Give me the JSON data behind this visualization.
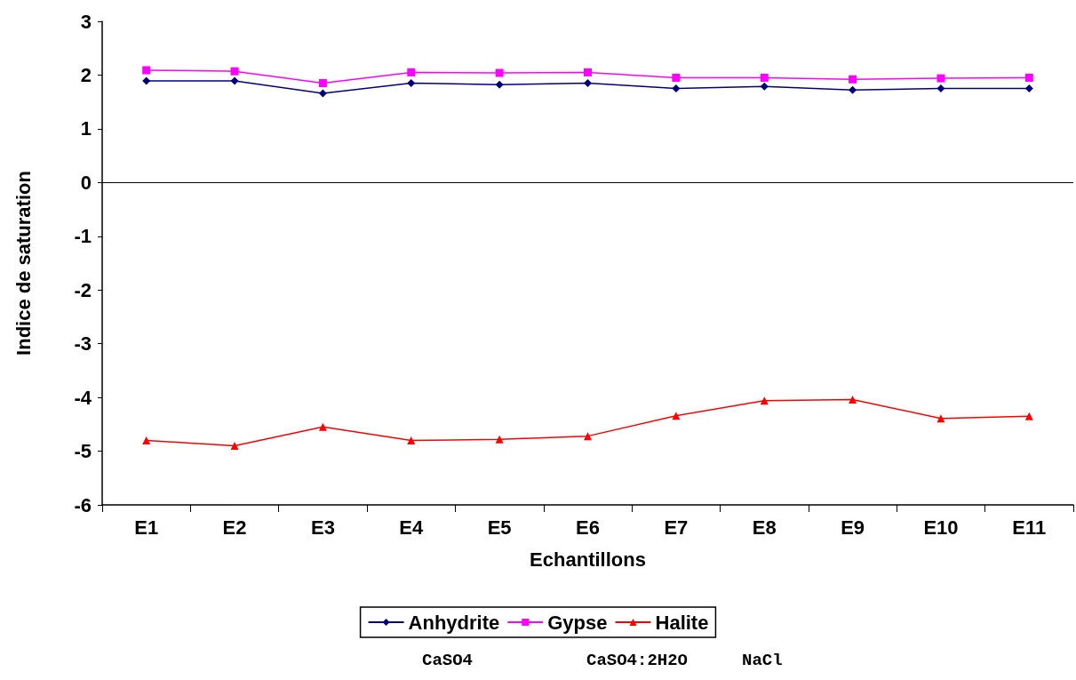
{
  "chart_data": {
    "type": "line",
    "xlabel": "Echantillons",
    "ylabel": "Indice de saturation",
    "categories": [
      "E1",
      "E2",
      "E3",
      "E4",
      "E5",
      "E6",
      "E7",
      "E8",
      "E9",
      "E10",
      "E11"
    ],
    "series": [
      {
        "name": "Anhydrite",
        "color": "#000080",
        "marker": "diamond",
        "values": [
          1.89,
          1.89,
          1.66,
          1.85,
          1.82,
          1.85,
          1.75,
          1.79,
          1.72,
          1.75,
          1.75
        ]
      },
      {
        "name": "Gypse",
        "color": "#ff00ff",
        "marker": "square",
        "values": [
          2.09,
          2.07,
          1.85,
          2.05,
          2.04,
          2.05,
          1.95,
          1.95,
          1.92,
          1.94,
          1.95
        ]
      },
      {
        "name": "Halite",
        "color": "#ff0000",
        "marker": "triangle",
        "values": [
          -4.8,
          -4.9,
          -4.55,
          -4.8,
          -4.78,
          -4.72,
          -4.34,
          -4.06,
          -4.04,
          -4.39,
          -4.35
        ]
      }
    ],
    "ylim": [
      -6,
      3
    ],
    "yticks": [
      -6,
      -5,
      -4,
      -3,
      -2,
      -1,
      0,
      1,
      2,
      3
    ],
    "ref_lines": [
      {
        "axis": "y",
        "value": 0,
        "color": "#000000"
      }
    ],
    "annotations": [
      "CaSO4",
      "CaSO4:2H2O",
      "NaCl"
    ],
    "grid": false,
    "legend": "bottom",
    "line_style": "solid"
  }
}
